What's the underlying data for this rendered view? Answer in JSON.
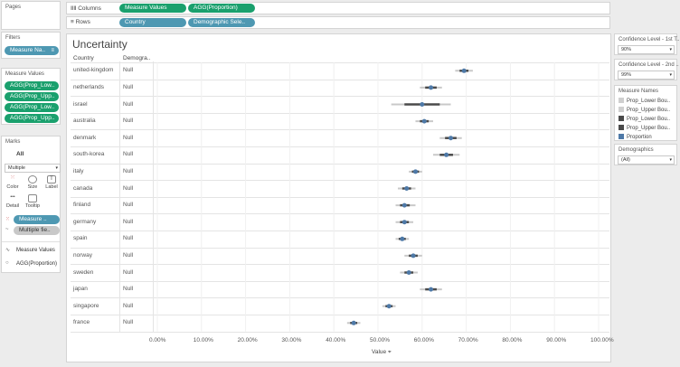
{
  "left_panel": {
    "pages_title": "Pages",
    "filters_title": "Filters",
    "filter_pill": "Measure Na..",
    "measure_values_title": "Measure Values",
    "measure_values_pills": [
      "AGG(Prop_Low..",
      "AGG(Prop_Upp..",
      "AGG(Prop_Low..",
      "AGG(Prop_Upp.."
    ],
    "marks_title": "Marks",
    "marks_all": "All",
    "mark_type": "Multiple",
    "mark_buttons": [
      "Color",
      "Size",
      "Label",
      "Detail",
      "Tooltip"
    ],
    "mark_pills": [
      "Measure ..",
      "Multiple fie.."
    ],
    "mark_items": [
      "Measure Values",
      "AGG(Proportion)"
    ]
  },
  "shelves": {
    "columns_label": "Columns",
    "columns_pills": [
      "Measure Values",
      "AGG(Proportion)"
    ],
    "rows_label": "Rows",
    "rows_pills": [
      "Country",
      "Demographic Sele.."
    ]
  },
  "viz": {
    "title": "Uncertainty",
    "header_country": "Country",
    "header_demographic": "Demogra..",
    "axis_title": "Value",
    "axis_pin_icon": "pin-icon"
  },
  "right_panel": {
    "conf1_label": "Confidence Level - 1st T..",
    "conf1_value": "90%",
    "conf2_label": "Confidence Level - 2nd ..",
    "conf2_value": "99%",
    "measure_names_title": "Measure Names",
    "legend": [
      {
        "label": "Prop_Lower Bou..",
        "color": "#cfcfcf"
      },
      {
        "label": "Prop_Upper Bou..",
        "color": "#cfcfcf"
      },
      {
        "label": "Prop_Lower Bou..",
        "color": "#4a4a4a"
      },
      {
        "label": "Prop_Upper Bou..",
        "color": "#4a4a4a"
      },
      {
        "label": "Proportion",
        "color": "#4e79a7"
      }
    ],
    "demographics_title": "Demographics",
    "demographics_value": "(All)"
  },
  "chart_data": {
    "type": "scatter",
    "title": "Uncertainty",
    "xlabel": "Value",
    "xlim": [
      0,
      1
    ],
    "x_ticks": [
      "0.00%",
      "10.00%",
      "20.00%",
      "30.00%",
      "40.00%",
      "50.00%",
      "60.00%",
      "70.00%",
      "80.00%",
      "90.00%",
      "100.00%"
    ],
    "rows": [
      {
        "country": "united-kingdom",
        "demographic": "Null",
        "proportion": 0.695,
        "lower_99": 0.675,
        "upper_99": 0.715,
        "lower_90": 0.685,
        "upper_90": 0.705
      },
      {
        "country": "netherlands",
        "demographic": "Null",
        "proportion": 0.62,
        "lower_99": 0.595,
        "upper_99": 0.645,
        "lower_90": 0.607,
        "upper_90": 0.633
      },
      {
        "country": "israel",
        "demographic": "Null",
        "proportion": 0.6,
        "lower_99": 0.53,
        "upper_99": 0.665,
        "lower_90": 0.56,
        "upper_90": 0.64
      },
      {
        "country": "australia",
        "demographic": "Null",
        "proportion": 0.605,
        "lower_99": 0.585,
        "upper_99": 0.625,
        "lower_90": 0.595,
        "upper_90": 0.615
      },
      {
        "country": "denmark",
        "demographic": "Null",
        "proportion": 0.665,
        "lower_99": 0.64,
        "upper_99": 0.69,
        "lower_90": 0.652,
        "upper_90": 0.678
      },
      {
        "country": "south-korea",
        "demographic": "Null",
        "proportion": 0.655,
        "lower_99": 0.625,
        "upper_99": 0.685,
        "lower_90": 0.64,
        "upper_90": 0.67
      },
      {
        "country": "italy",
        "demographic": "Null",
        "proportion": 0.585,
        "lower_99": 0.57,
        "upper_99": 0.6,
        "lower_90": 0.577,
        "upper_90": 0.593
      },
      {
        "country": "canada",
        "demographic": "Null",
        "proportion": 0.565,
        "lower_99": 0.545,
        "upper_99": 0.585,
        "lower_90": 0.555,
        "upper_90": 0.575
      },
      {
        "country": "finland",
        "demographic": "Null",
        "proportion": 0.56,
        "lower_99": 0.54,
        "upper_99": 0.585,
        "lower_90": 0.55,
        "upper_90": 0.572
      },
      {
        "country": "germany",
        "demographic": "Null",
        "proportion": 0.56,
        "lower_99": 0.54,
        "upper_99": 0.58,
        "lower_90": 0.55,
        "upper_90": 0.57
      },
      {
        "country": "spain",
        "demographic": "Null",
        "proportion": 0.555,
        "lower_99": 0.54,
        "upper_99": 0.57,
        "lower_90": 0.547,
        "upper_90": 0.563
      },
      {
        "country": "norway",
        "demographic": "Null",
        "proportion": 0.58,
        "lower_99": 0.56,
        "upper_99": 0.6,
        "lower_90": 0.57,
        "upper_90": 0.59
      },
      {
        "country": "sweden",
        "demographic": "Null",
        "proportion": 0.57,
        "lower_99": 0.55,
        "upper_99": 0.59,
        "lower_90": 0.56,
        "upper_90": 0.58
      },
      {
        "country": "japan",
        "demographic": "Null",
        "proportion": 0.62,
        "lower_99": 0.595,
        "upper_99": 0.645,
        "lower_90": 0.607,
        "upper_90": 0.633
      },
      {
        "country": "singapore",
        "demographic": "Null",
        "proportion": 0.525,
        "lower_99": 0.51,
        "upper_99": 0.54,
        "lower_90": 0.517,
        "upper_90": 0.533
      },
      {
        "country": "france",
        "demographic": "Null",
        "proportion": 0.445,
        "lower_99": 0.43,
        "upper_99": 0.46,
        "lower_90": 0.437,
        "upper_90": 0.453
      }
    ],
    "colors": {
      "ci_99": "#c9c9c9",
      "ci_90": "#4a4a4a",
      "point": "#4e79a7"
    },
    "grid": true
  }
}
